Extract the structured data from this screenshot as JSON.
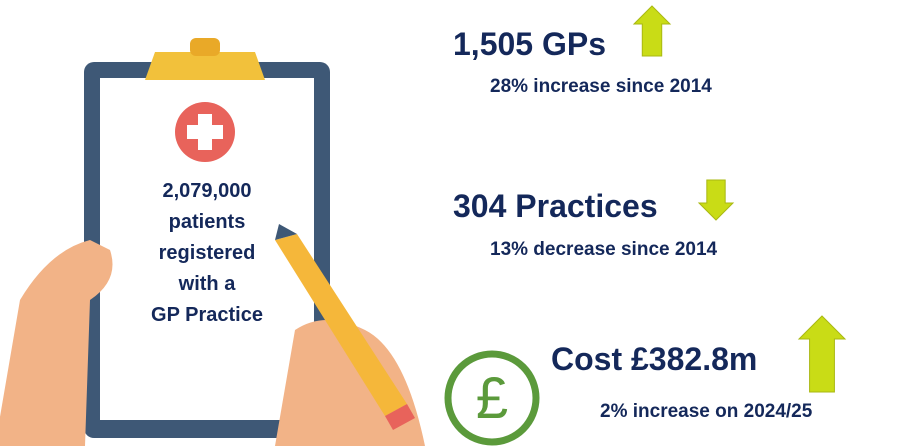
{
  "clipboard": {
    "lines": [
      "2,079,000",
      "patients",
      "registered",
      "with a",
      "GP Practice"
    ]
  },
  "stats": [
    {
      "headline": "1,505 GPs",
      "detail": "28% increase since 2014",
      "direction": "up"
    },
    {
      "headline": "304 Practices",
      "detail": "13% decrease since 2014",
      "direction": "down"
    },
    {
      "headline": "Cost £382.8m",
      "detail": "2% increase on 2024/25",
      "direction": "up"
    }
  ]
}
